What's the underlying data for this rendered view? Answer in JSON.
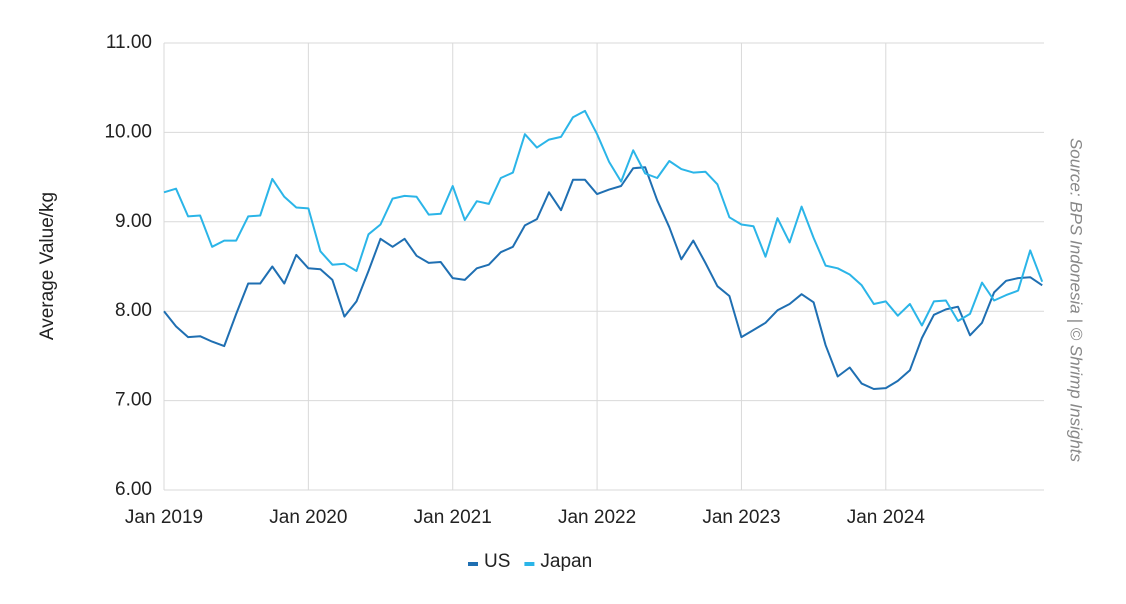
{
  "chart_data": {
    "type": "line",
    "ylabel": "Average Value/kg",
    "source": "Source: BPS Indonesia | © Shrimp Insights",
    "x": [
      "Jan 2019",
      "Feb 2019",
      "Mar 2019",
      "Apr 2019",
      "May 2019",
      "Jun 2019",
      "Jul 2019",
      "Aug 2019",
      "Sep 2019",
      "Oct 2019",
      "Nov 2019",
      "Dec 2019",
      "Jan 2020",
      "Feb 2020",
      "Mar 2020",
      "Apr 2020",
      "May 2020",
      "Jun 2020",
      "Jul 2020",
      "Aug 2020",
      "Sep 2020",
      "Oct 2020",
      "Nov 2020",
      "Dec 2020",
      "Jan 2021",
      "Feb 2021",
      "Mar 2021",
      "Apr 2021",
      "May 2021",
      "Jun 2021",
      "Jul 2021",
      "Aug 2021",
      "Sep 2021",
      "Oct 2021",
      "Nov 2021",
      "Dec 2021",
      "Jan 2022",
      "Feb 2022",
      "Mar 2022",
      "Apr 2022",
      "May 2022",
      "Jun 2022",
      "Jul 2022",
      "Aug 2022",
      "Sep 2022",
      "Oct 2022",
      "Nov 2022",
      "Dec 2022",
      "Jan 2023",
      "Feb 2023",
      "Mar 2023",
      "Apr 2023",
      "May 2023",
      "Jun 2023",
      "Jul 2023",
      "Aug 2023",
      "Sep 2023",
      "Oct 2023",
      "Nov 2023",
      "Dec 2023",
      "Jan 2024",
      "Feb 2024",
      "Mar 2024",
      "Apr 2024",
      "May 2024",
      "Jun 2024",
      "Jul 2024",
      "Aug 2024",
      "Sep 2024",
      "Oct 2024",
      "Nov 2024",
      "Dec 2024",
      "Jan 2025",
      "Feb 2025"
    ],
    "xticks": [
      "Jan 2019",
      "Jan 2020",
      "Jan 2021",
      "Jan 2022",
      "Jan 2023",
      "Jan 2024"
    ],
    "series": [
      {
        "name": "US",
        "color": "#1f6fb2",
        "values": [
          8.0,
          7.83,
          7.71,
          7.72,
          7.66,
          7.61,
          7.97,
          8.31,
          8.31,
          8.5,
          8.31,
          8.63,
          8.48,
          8.47,
          8.35,
          7.94,
          8.11,
          8.45,
          8.81,
          8.72,
          8.81,
          8.62,
          8.54,
          8.55,
          8.37,
          8.35,
          8.48,
          8.52,
          8.66,
          8.72,
          8.96,
          9.03,
          9.33,
          9.13,
          9.47,
          9.47,
          9.31,
          9.36,
          9.4,
          9.6,
          9.61,
          9.24,
          8.94,
          8.58,
          8.79,
          8.54,
          8.28,
          8.17,
          7.71,
          7.79,
          7.87,
          8.01,
          8.08,
          8.19,
          8.1,
          7.62,
          7.27,
          7.37,
          7.19,
          7.13,
          7.14,
          7.22,
          7.34,
          7.7,
          7.96,
          8.02,
          8.05,
          7.73,
          7.87,
          8.21,
          8.34,
          8.37,
          8.38,
          8.29
        ]
      },
      {
        "name": "Japan",
        "color": "#2bb5e8",
        "values": [
          9.33,
          9.37,
          9.06,
          9.07,
          8.72,
          8.79,
          8.79,
          9.06,
          9.07,
          9.48,
          9.28,
          9.16,
          9.15,
          8.67,
          8.52,
          8.53,
          8.45,
          8.86,
          8.97,
          9.26,
          9.29,
          9.28,
          9.08,
          9.09,
          9.4,
          9.02,
          9.23,
          9.2,
          9.49,
          9.55,
          9.98,
          9.83,
          9.92,
          9.95,
          10.17,
          10.24,
          9.98,
          9.67,
          9.45,
          9.8,
          9.54,
          9.49,
          9.68,
          9.59,
          9.55,
          9.56,
          9.42,
          9.05,
          8.97,
          8.95,
          8.61,
          9.04,
          8.77,
          9.17,
          8.82,
          8.51,
          8.48,
          8.41,
          8.29,
          8.08,
          8.11,
          7.95,
          8.08,
          7.84,
          8.11,
          8.12,
          7.89,
          7.97,
          8.32,
          8.12,
          8.18,
          8.23,
          8.68,
          8.33
        ]
      }
    ],
    "ylim": [
      6,
      11
    ],
    "yticks": [
      {
        "value": 6,
        "label": "6.00"
      },
      {
        "value": 7,
        "label": "7.00"
      },
      {
        "value": 8,
        "label": "8.00"
      },
      {
        "value": 9,
        "label": "9.00"
      },
      {
        "value": 10,
        "label": "10.00"
      },
      {
        "value": 11,
        "label": "11.00"
      }
    ],
    "grid": true,
    "legend": "bottom"
  }
}
